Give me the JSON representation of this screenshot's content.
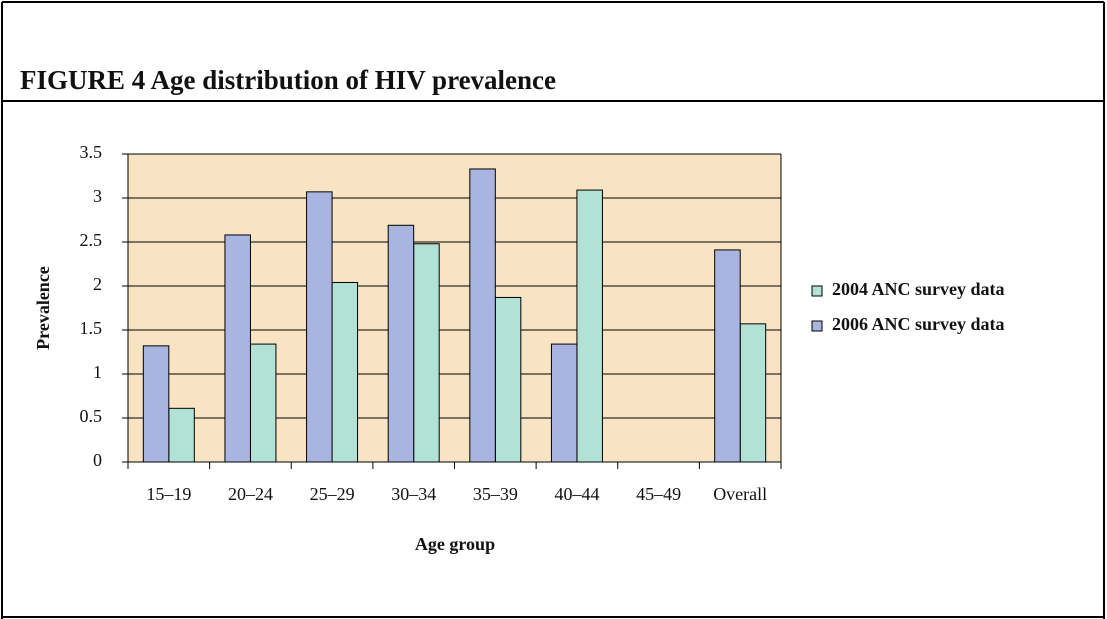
{
  "chart_data": {
    "type": "bar",
    "title": "FIGURE 4  Age distribution of HIV prevalence",
    "x_label": "Age group",
    "y_label": "Prevalence",
    "categories": [
      "15–19",
      "20–24",
      "25–29",
      "30–34",
      "35–39",
      "40–44",
      "45–49",
      "Overall"
    ],
    "series": [
      {
        "name": "2004 ANC survey data",
        "color": "#b2e2d6",
        "values": [
          0.61,
          1.34,
          2.04,
          2.48,
          1.87,
          3.09,
          null,
          1.57
        ]
      },
      {
        "name": "2006 ANC survey data",
        "color": "#aab4e0",
        "values": [
          1.32,
          2.58,
          3.07,
          2.69,
          3.33,
          1.34,
          null,
          2.41
        ]
      }
    ],
    "ylim": [
      0,
      3.5
    ],
    "yticks": [
      0,
      0.5,
      1,
      1.5,
      2,
      2.5,
      3,
      3.5
    ],
    "grid": true,
    "legend": "right",
    "background": "#f8e4c2"
  }
}
